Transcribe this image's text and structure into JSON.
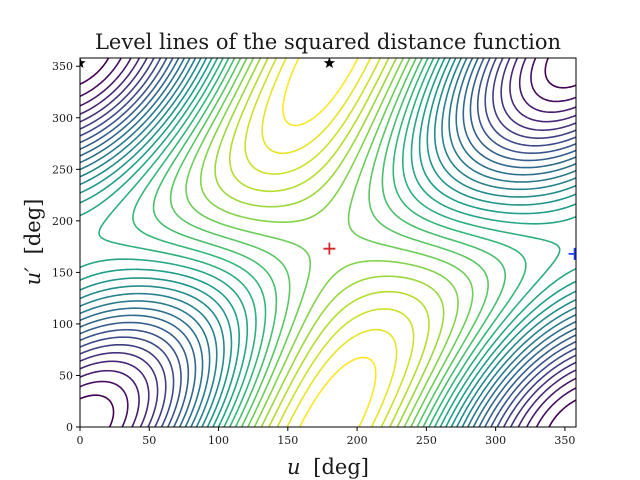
{
  "chart_data": {
    "type": "contour",
    "title": "Level lines of the squared distance function",
    "xlabel_var": "u",
    "xlabel_unit": "[deg]",
    "ylabel_var": "u′",
    "ylabel_unit": "[deg]",
    "xlim": [
      0,
      358
    ],
    "ylim": [
      0,
      358
    ],
    "xticks": [
      0,
      50,
      100,
      150,
      200,
      250,
      300,
      350
    ],
    "yticks": [
      0,
      50,
      100,
      150,
      200,
      250,
      300,
      350
    ],
    "grid": false,
    "colormap": "viridis",
    "contour_levels": 28,
    "markers": [
      {
        "name": "maximum",
        "symbol": "plus",
        "x": 180,
        "y": 173,
        "color": "#d62728"
      },
      {
        "name": "minimum",
        "symbol": "plus",
        "x": 357,
        "y": 168,
        "color": "#1f3cff"
      },
      {
        "name": "saddle",
        "symbol": "star",
        "x": 180,
        "y": 353,
        "color": "#000000"
      },
      {
        "name": "saddle",
        "symbol": "star",
        "x": 0,
        "y": 353,
        "color": "#000000"
      }
    ]
  }
}
